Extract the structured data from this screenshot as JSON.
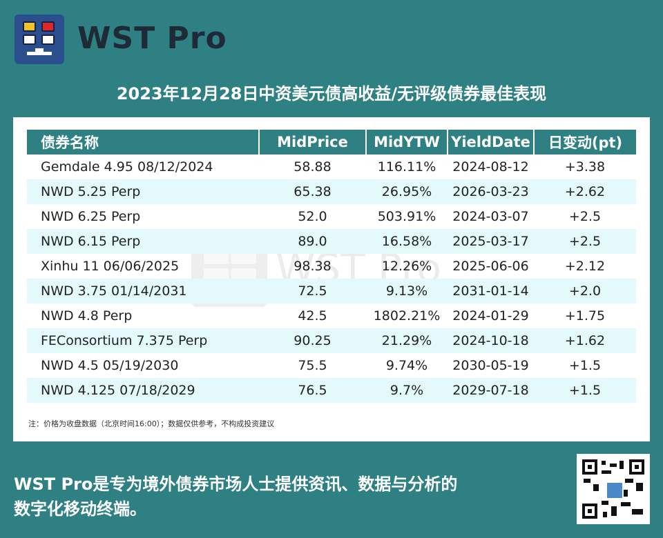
{
  "brand": {
    "name": "WST Pro",
    "logo_icon": "monitor-grid-logo-icon"
  },
  "watermark": {
    "text": "WST Pro"
  },
  "title": "2023年12月28日中资美元债高收益/无评级债券最佳表现",
  "table": {
    "headers": [
      "债券名称",
      "MidPrice",
      "MidYTW",
      "YieldDate",
      "日变动(pt)"
    ],
    "rows": [
      [
        "Gemdale 4.95 08/12/2024",
        "58.88",
        "116.11%",
        "2024-08-12",
        "+3.38"
      ],
      [
        "NWD 5.25 Perp",
        "65.38",
        "26.95%",
        "2026-03-23",
        "+2.62"
      ],
      [
        "NWD 6.25 Perp",
        "52.0",
        "503.91%",
        "2024-03-07",
        "+2.5"
      ],
      [
        "NWD 6.15 Perp",
        "89.0",
        "16.58%",
        "2025-03-17",
        "+2.5"
      ],
      [
        "Xinhu 11 06/06/2025",
        "98.38",
        "12.26%",
        "2025-06-06",
        "+2.12"
      ],
      [
        "NWD 3.75 01/14/2031",
        "72.5",
        "9.13%",
        "2031-01-14",
        "+2.0"
      ],
      [
        "NWD 4.8 Perp",
        "42.5",
        "1802.21%",
        "2024-01-29",
        "+1.75"
      ],
      [
        "FEConsortium 7.375 Perp",
        "90.25",
        "21.29%",
        "2024-10-18",
        "+1.62"
      ],
      [
        "NWD 4.5 05/19/2030",
        "75.5",
        "9.74%",
        "2030-05-19",
        "+1.5"
      ],
      [
        "NWD 4.125 07/18/2029",
        "76.5",
        "9.7%",
        "2029-07-18",
        "+1.5"
      ]
    ]
  },
  "note": "注：价格为收盘数据（北京时间16:00）；数据仅供参考，不构成投资建议",
  "footer": {
    "line1": "WST Pro是专为境外债券市场人士提供资讯、数据与分析的",
    "line2": "数字化移动终端。"
  },
  "qr": {
    "icon": "qr-code-icon"
  },
  "colors": {
    "background": "#2f8083",
    "header": "#2f8083",
    "row_alt": "#e3f9fb",
    "logo": "#2b4f8e"
  }
}
